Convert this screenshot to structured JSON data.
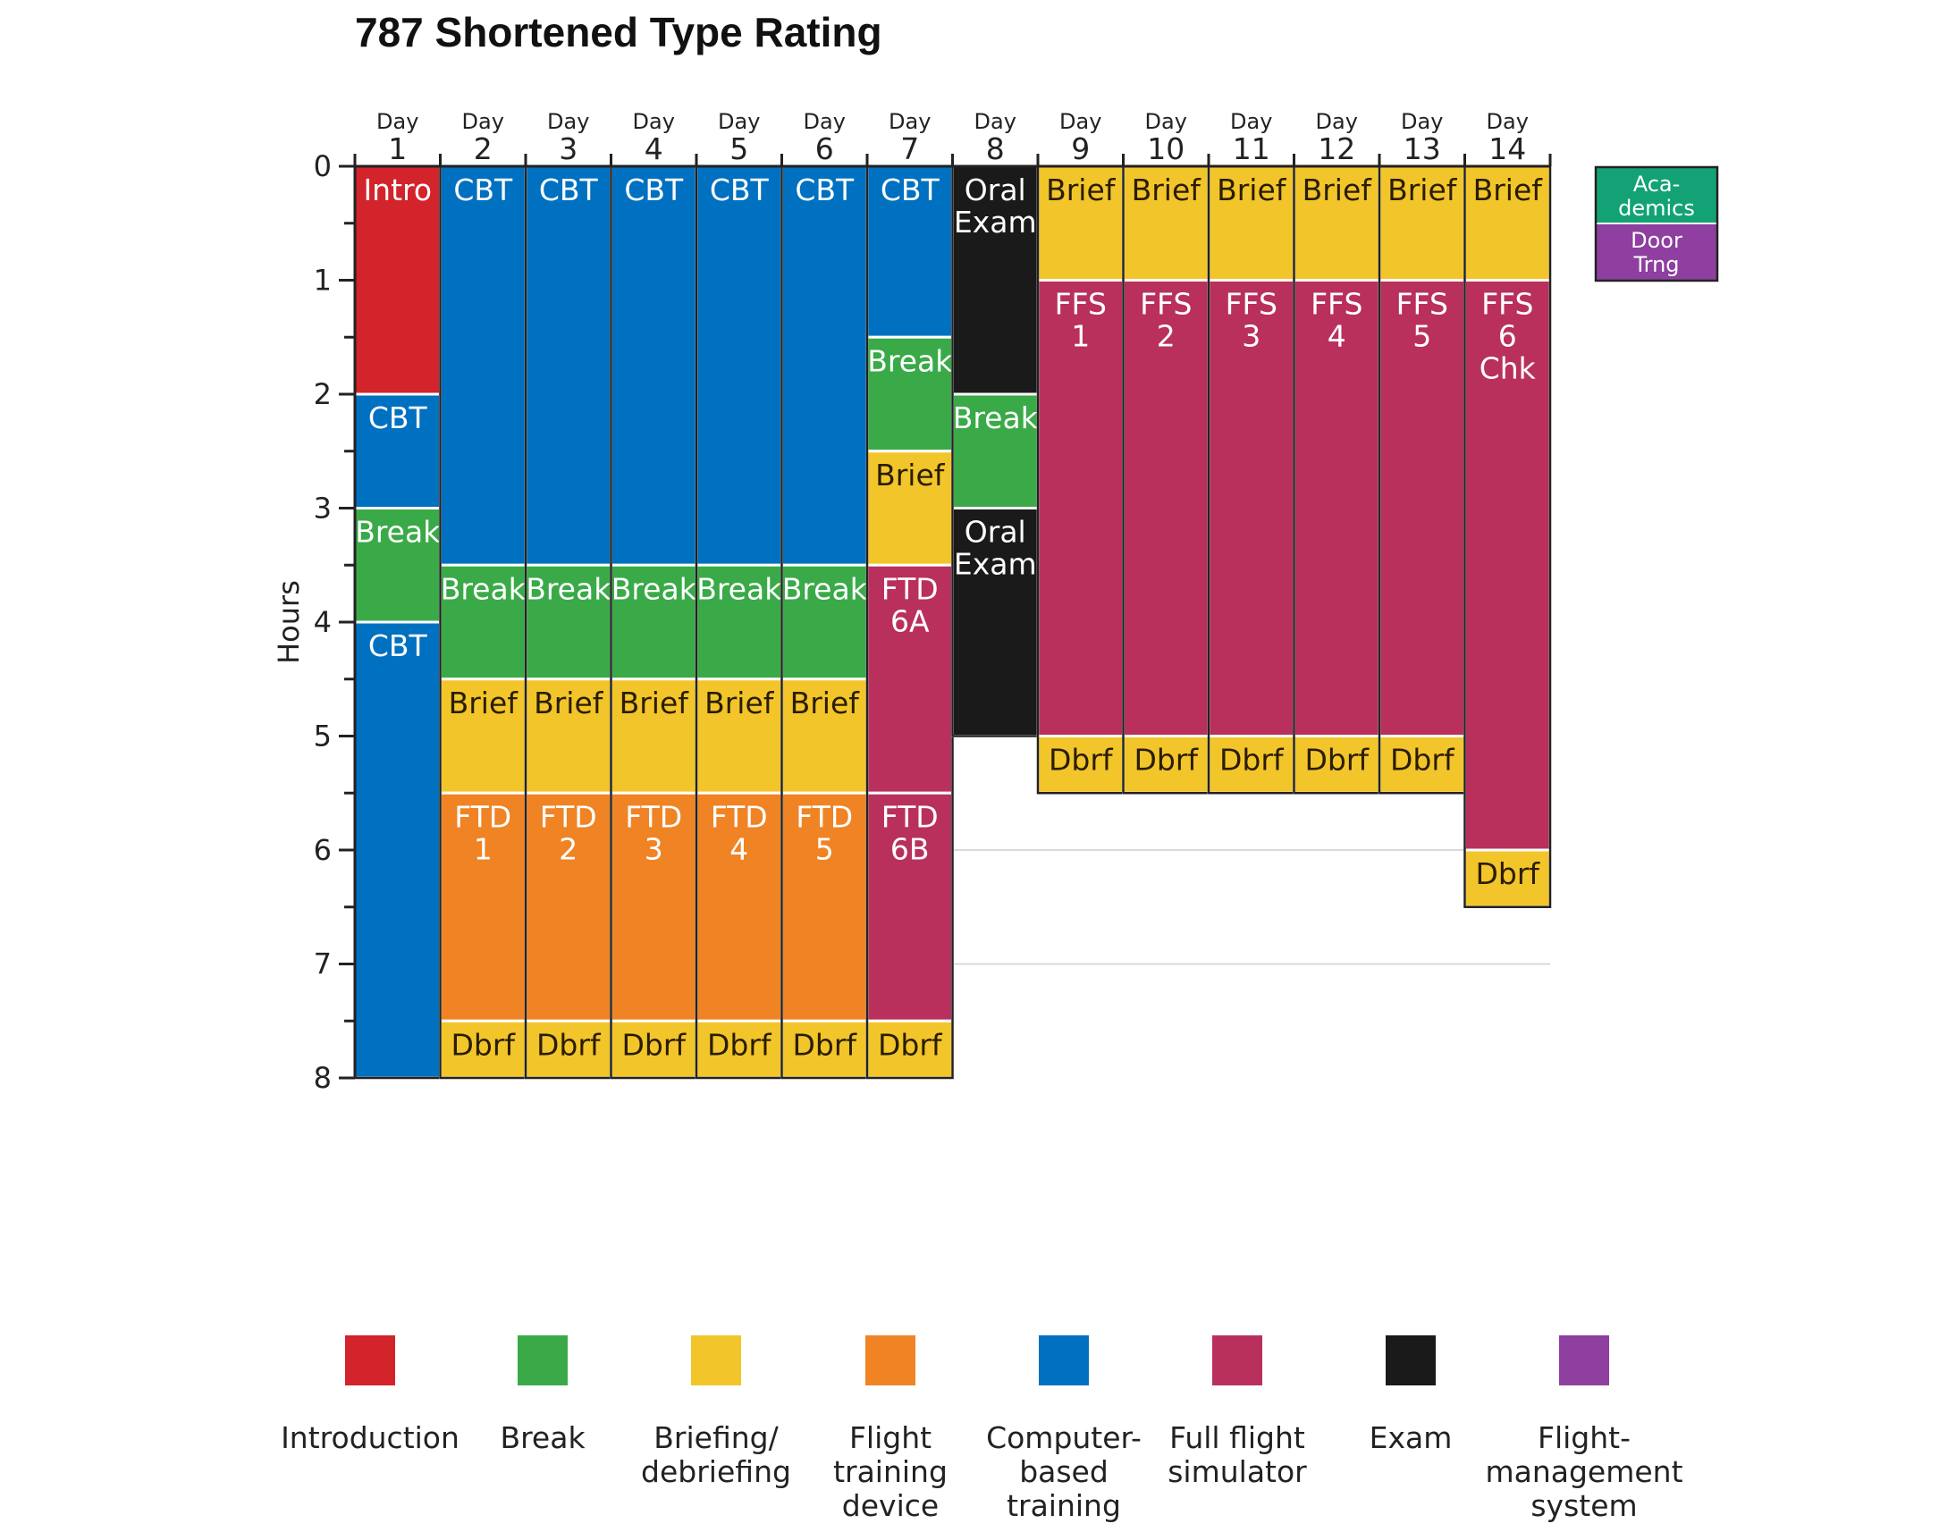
{
  "chart_data": {
    "type": "table",
    "title": "787 Shortened Type Rating",
    "ylabel": "Hours",
    "ylim": [
      0,
      8
    ],
    "yticks": [
      "0",
      "1",
      "2",
      "3",
      "4",
      "5",
      "6",
      "7",
      "8"
    ],
    "day_word": "Day",
    "days": [
      "1",
      "2",
      "3",
      "4",
      "5",
      "6",
      "7",
      "8",
      "9",
      "10",
      "11",
      "12",
      "13",
      "14"
    ],
    "colors": {
      "intro": "#d3232b",
      "break": "#3aaa48",
      "brief": "#f2c52a",
      "ftd": "#f08324",
      "cbt": "#0070c0",
      "ffs": "#b9305d",
      "exam": "#1a1a1a",
      "fms": "#8e3f9f",
      "academics": "#13a276"
    },
    "schedule": [
      [
        {
          "label": "Intro",
          "cat": "intro",
          "start": 0,
          "end": 2
        },
        {
          "label": "CBT",
          "cat": "cbt",
          "start": 2,
          "end": 3
        },
        {
          "label": "Break",
          "cat": "break",
          "start": 3,
          "end": 4
        },
        {
          "label": "CBT",
          "cat": "cbt",
          "start": 4,
          "end": 8
        }
      ],
      [
        {
          "label": "CBT",
          "cat": "cbt",
          "start": 0,
          "end": 3.5
        },
        {
          "label": "Break",
          "cat": "break",
          "start": 3.5,
          "end": 4.5
        },
        {
          "label": "Brief",
          "cat": "brief",
          "start": 4.5,
          "end": 5.5
        },
        {
          "label": "FTD\n1",
          "cat": "ftd",
          "start": 5.5,
          "end": 7.5
        },
        {
          "label": "Dbrf",
          "cat": "brief",
          "start": 7.5,
          "end": 8
        }
      ],
      [
        {
          "label": "CBT",
          "cat": "cbt",
          "start": 0,
          "end": 3.5
        },
        {
          "label": "Break",
          "cat": "break",
          "start": 3.5,
          "end": 4.5
        },
        {
          "label": "Brief",
          "cat": "brief",
          "start": 4.5,
          "end": 5.5
        },
        {
          "label": "FTD\n2",
          "cat": "ftd",
          "start": 5.5,
          "end": 7.5
        },
        {
          "label": "Dbrf",
          "cat": "brief",
          "start": 7.5,
          "end": 8
        }
      ],
      [
        {
          "label": "CBT",
          "cat": "cbt",
          "start": 0,
          "end": 3.5
        },
        {
          "label": "Break",
          "cat": "break",
          "start": 3.5,
          "end": 4.5
        },
        {
          "label": "Brief",
          "cat": "brief",
          "start": 4.5,
          "end": 5.5
        },
        {
          "label": "FTD\n3",
          "cat": "ftd",
          "start": 5.5,
          "end": 7.5
        },
        {
          "label": "Dbrf",
          "cat": "brief",
          "start": 7.5,
          "end": 8
        }
      ],
      [
        {
          "label": "CBT",
          "cat": "cbt",
          "start": 0,
          "end": 3.5
        },
        {
          "label": "Break",
          "cat": "break",
          "start": 3.5,
          "end": 4.5
        },
        {
          "label": "Brief",
          "cat": "brief",
          "start": 4.5,
          "end": 5.5
        },
        {
          "label": "FTD\n4",
          "cat": "ftd",
          "start": 5.5,
          "end": 7.5
        },
        {
          "label": "Dbrf",
          "cat": "brief",
          "start": 7.5,
          "end": 8
        }
      ],
      [
        {
          "label": "CBT",
          "cat": "cbt",
          "start": 0,
          "end": 3.5
        },
        {
          "label": "Break",
          "cat": "break",
          "start": 3.5,
          "end": 4.5
        },
        {
          "label": "Brief",
          "cat": "brief",
          "start": 4.5,
          "end": 5.5
        },
        {
          "label": "FTD\n5",
          "cat": "ftd",
          "start": 5.5,
          "end": 7.5
        },
        {
          "label": "Dbrf",
          "cat": "brief",
          "start": 7.5,
          "end": 8
        }
      ],
      [
        {
          "label": "CBT",
          "cat": "cbt",
          "start": 0,
          "end": 1.5
        },
        {
          "label": "Break",
          "cat": "break",
          "start": 1.5,
          "end": 2.5
        },
        {
          "label": "Brief",
          "cat": "brief",
          "start": 2.5,
          "end": 3.5
        },
        {
          "label": "FTD\n6A",
          "cat": "ffs",
          "start": 3.5,
          "end": 5.5
        },
        {
          "label": "FTD\n6B",
          "cat": "ffs",
          "start": 5.5,
          "end": 7.5
        },
        {
          "label": "Dbrf",
          "cat": "brief",
          "start": 7.5,
          "end": 8
        }
      ],
      [
        {
          "label": "Oral\nExam",
          "cat": "exam",
          "start": 0,
          "end": 2
        },
        {
          "label": "Break",
          "cat": "break",
          "start": 2,
          "end": 3
        },
        {
          "label": "Oral\nExam",
          "cat": "exam",
          "start": 3,
          "end": 5
        }
      ],
      [
        {
          "label": "Brief",
          "cat": "brief",
          "start": 0,
          "end": 1
        },
        {
          "label": "FFS\n1",
          "cat": "ffs",
          "start": 1,
          "end": 5
        },
        {
          "label": "Dbrf",
          "cat": "brief",
          "start": 5,
          "end": 5.5
        }
      ],
      [
        {
          "label": "Brief",
          "cat": "brief",
          "start": 0,
          "end": 1
        },
        {
          "label": "FFS\n2",
          "cat": "ffs",
          "start": 1,
          "end": 5
        },
        {
          "label": "Dbrf",
          "cat": "brief",
          "start": 5,
          "end": 5.5
        }
      ],
      [
        {
          "label": "Brief",
          "cat": "brief",
          "start": 0,
          "end": 1
        },
        {
          "label": "FFS\n3",
          "cat": "ffs",
          "start": 1,
          "end": 5
        },
        {
          "label": "Dbrf",
          "cat": "brief",
          "start": 5,
          "end": 5.5
        }
      ],
      [
        {
          "label": "Brief",
          "cat": "brief",
          "start": 0,
          "end": 1
        },
        {
          "label": "FFS\n4",
          "cat": "ffs",
          "start": 1,
          "end": 5
        },
        {
          "label": "Dbrf",
          "cat": "brief",
          "start": 5,
          "end": 5.5
        }
      ],
      [
        {
          "label": "Brief",
          "cat": "brief",
          "start": 0,
          "end": 1
        },
        {
          "label": "FFS\n5",
          "cat": "ffs",
          "start": 1,
          "end": 5
        },
        {
          "label": "Dbrf",
          "cat": "brief",
          "start": 5,
          "end": 5.5
        }
      ],
      [
        {
          "label": "Brief",
          "cat": "brief",
          "start": 0,
          "end": 1
        },
        {
          "label": "FFS\n6\nChk",
          "cat": "ffs",
          "start": 1,
          "end": 6
        },
        {
          "label": "Dbrf",
          "cat": "brief",
          "start": 6,
          "end": 6.5
        }
      ]
    ],
    "side_legend": [
      {
        "label": "Aca-\ndemics",
        "cat": "academics"
      },
      {
        "label": "Door\nTrng",
        "cat": "fms"
      }
    ],
    "legend": [
      {
        "label": "Introduction",
        "cat": "intro"
      },
      {
        "label": "Break",
        "cat": "break"
      },
      {
        "label": "Briefing/\ndebriefing",
        "cat": "brief"
      },
      {
        "label": "Flight\ntraining\ndevice",
        "cat": "ftd"
      },
      {
        "label": "Computer-\nbased\ntraining",
        "cat": "cbt"
      },
      {
        "label": "Full flight\nsimulator",
        "cat": "ffs"
      },
      {
        "label": "Exam",
        "cat": "exam"
      },
      {
        "label": "Flight-\nmanagement\nsystem",
        "cat": "fms"
      }
    ]
  }
}
